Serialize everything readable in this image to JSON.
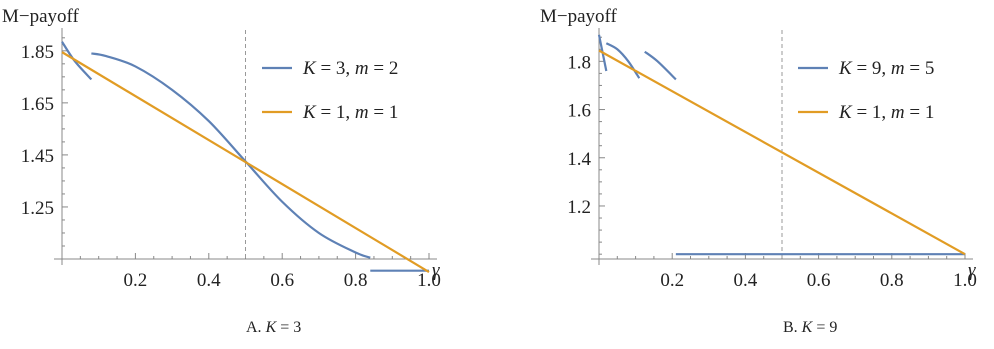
{
  "chart_data": [
    {
      "type": "line",
      "ylabel": "M−payoff",
      "xlabel": "γ",
      "caption_prefix": "A.",
      "caption_var": "K",
      "caption_rest": " = 3",
      "x_ticks": [
        "0.2",
        "0.4",
        "0.6",
        "0.8",
        "1.0"
      ],
      "y_ticks": [
        "1.25",
        "1.45",
        "1.65",
        "1.85"
      ],
      "x_tick_values": [
        0.2,
        0.4,
        0.6,
        0.8,
        1.0
      ],
      "y_tick_values": [
        1.25,
        1.45,
        1.65,
        1.85
      ],
      "xlim": [
        0,
        1.0
      ],
      "ylim": [
        1.05,
        1.93
      ],
      "dashed_vline_x": 0.5,
      "series": [
        {
          "name_parts": [
            "K",
            " = 3, ",
            "m",
            " = 2"
          ],
          "color": "#5e81b5",
          "segments": [
            [
              [
                0.0,
                1.885
              ],
              [
                0.035,
                1.81
              ],
              [
                0.08,
                1.74
              ]
            ],
            [
              [
                0.08,
                1.84
              ],
              [
                0.12,
                1.83
              ],
              [
                0.2,
                1.79
              ],
              [
                0.3,
                1.7
              ],
              [
                0.4,
                1.58
              ],
              [
                0.5,
                1.425
              ],
              [
                0.6,
                1.27
              ],
              [
                0.7,
                1.15
              ],
              [
                0.8,
                1.075
              ],
              [
                0.84,
                1.055
              ]
            ],
            [
              [
                0.84,
                1.005
              ],
              [
                1.0,
                1.005
              ]
            ]
          ]
        },
        {
          "name_parts": [
            "K",
            " = 1, ",
            "m",
            " = 1"
          ],
          "color": "#e19c24",
          "segments": [
            [
              [
                0.0,
                1.845
              ],
              [
                1.0,
                1.0
              ]
            ]
          ]
        }
      ]
    },
    {
      "type": "line",
      "ylabel": "M−payoff",
      "xlabel": "γ",
      "caption_prefix": "B.",
      "caption_var": "K",
      "caption_rest": " = 9",
      "x_ticks": [
        "0.2",
        "0.4",
        "0.6",
        "0.8",
        "1.0"
      ],
      "y_ticks": [
        "1.2",
        "1.4",
        "1.6",
        "1.8"
      ],
      "x_tick_values": [
        0.2,
        0.4,
        0.6,
        0.8,
        1.0
      ],
      "y_tick_values": [
        1.2,
        1.4,
        1.6,
        1.8
      ],
      "xlim": [
        0,
        1.0
      ],
      "ylim": [
        0.98,
        1.93
      ],
      "dashed_vline_x": 0.5,
      "series": [
        {
          "name_parts": [
            "K",
            " = 9, ",
            "m",
            " = 5"
          ],
          "color": "#5e81b5",
          "segments": [
            [
              [
                0.0,
                1.91
              ],
              [
                0.012,
                1.82
              ],
              [
                0.02,
                1.76
              ]
            ],
            [
              [
                0.02,
                1.875
              ],
              [
                0.05,
                1.85
              ],
              [
                0.08,
                1.8
              ],
              [
                0.11,
                1.73
              ]
            ],
            [
              [
                0.125,
                1.84
              ],
              [
                0.16,
                1.8
              ],
              [
                0.21,
                1.725
              ]
            ],
            [
              [
                0.21,
                1.0
              ],
              [
                1.0,
                1.0
              ]
            ]
          ]
        },
        {
          "name_parts": [
            "K",
            " = 1, ",
            "m",
            " = 1"
          ],
          "color": "#e19c24",
          "segments": [
            [
              [
                0.0,
                1.845
              ],
              [
                1.0,
                1.0
              ]
            ]
          ]
        }
      ]
    }
  ]
}
